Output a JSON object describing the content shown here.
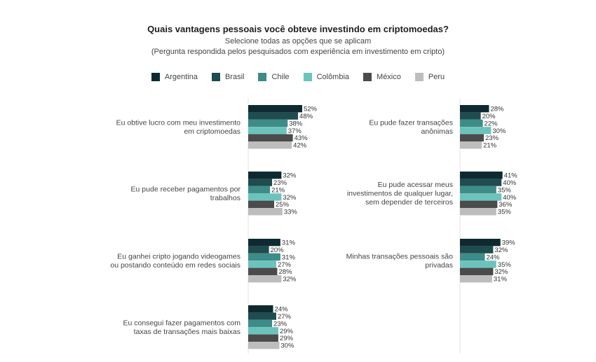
{
  "chart_data": {
    "type": "bar",
    "orientation": "horizontal",
    "title": "Quais vantagens pessoais você obteve investindo em criptomoedas?",
    "subtitle": "Selecione todas as opções que se aplicam",
    "note": "(Pergunta respondida pelos pesquisados com experiência em investimento em cripto)",
    "legend_position": "top-center",
    "grid": false,
    "value_suffix": "%",
    "xlim": [
      0,
      60
    ],
    "series": [
      {
        "name": "Argentina",
        "color": "#0e2a30"
      },
      {
        "name": "Brasil",
        "color": "#1f4c4e"
      },
      {
        "name": "Chile",
        "color": "#3e8c87"
      },
      {
        "name": "Colômbia",
        "color": "#6cc3bb"
      },
      {
        "name": "México",
        "color": "#4b4b4b"
      },
      {
        "name": "Peru",
        "color": "#bdbdbd"
      }
    ],
    "groups": [
      {
        "label_lines": [
          "Eu obtive lucro com meu investimento",
          "em criptomoedas"
        ],
        "values": [
          52,
          48,
          38,
          37,
          43,
          42
        ]
      },
      {
        "label_lines": [
          "Eu pude receber pagamentos por",
          "trabalhos"
        ],
        "values": [
          32,
          23,
          21,
          32,
          25,
          33
        ]
      },
      {
        "label_lines": [
          "Eu ganhei cripto jogando videogames",
          "ou postando conteúdo em redes sociais"
        ],
        "values": [
          31,
          20,
          31,
          27,
          28,
          32
        ]
      },
      {
        "label_lines": [
          "Eu consegui fazer pagamentos com",
          "taxas de transações mais baixas"
        ],
        "values": [
          24,
          27,
          23,
          29,
          29,
          30
        ]
      },
      {
        "label_lines": [
          "Eu pude fazer transações",
          "anônimas"
        ],
        "values": [
          28,
          20,
          22,
          30,
          23,
          21
        ]
      },
      {
        "label_lines": [
          "Eu pude acessar meus",
          "investimentos de qualquer lugar,",
          "sem depender de terceiros"
        ],
        "values": [
          41,
          40,
          35,
          40,
          36,
          35
        ]
      },
      {
        "label_lines": [
          "Minhas transações pessoais são",
          "privadas"
        ],
        "values": [
          39,
          32,
          24,
          35,
          32,
          31
        ]
      }
    ]
  }
}
